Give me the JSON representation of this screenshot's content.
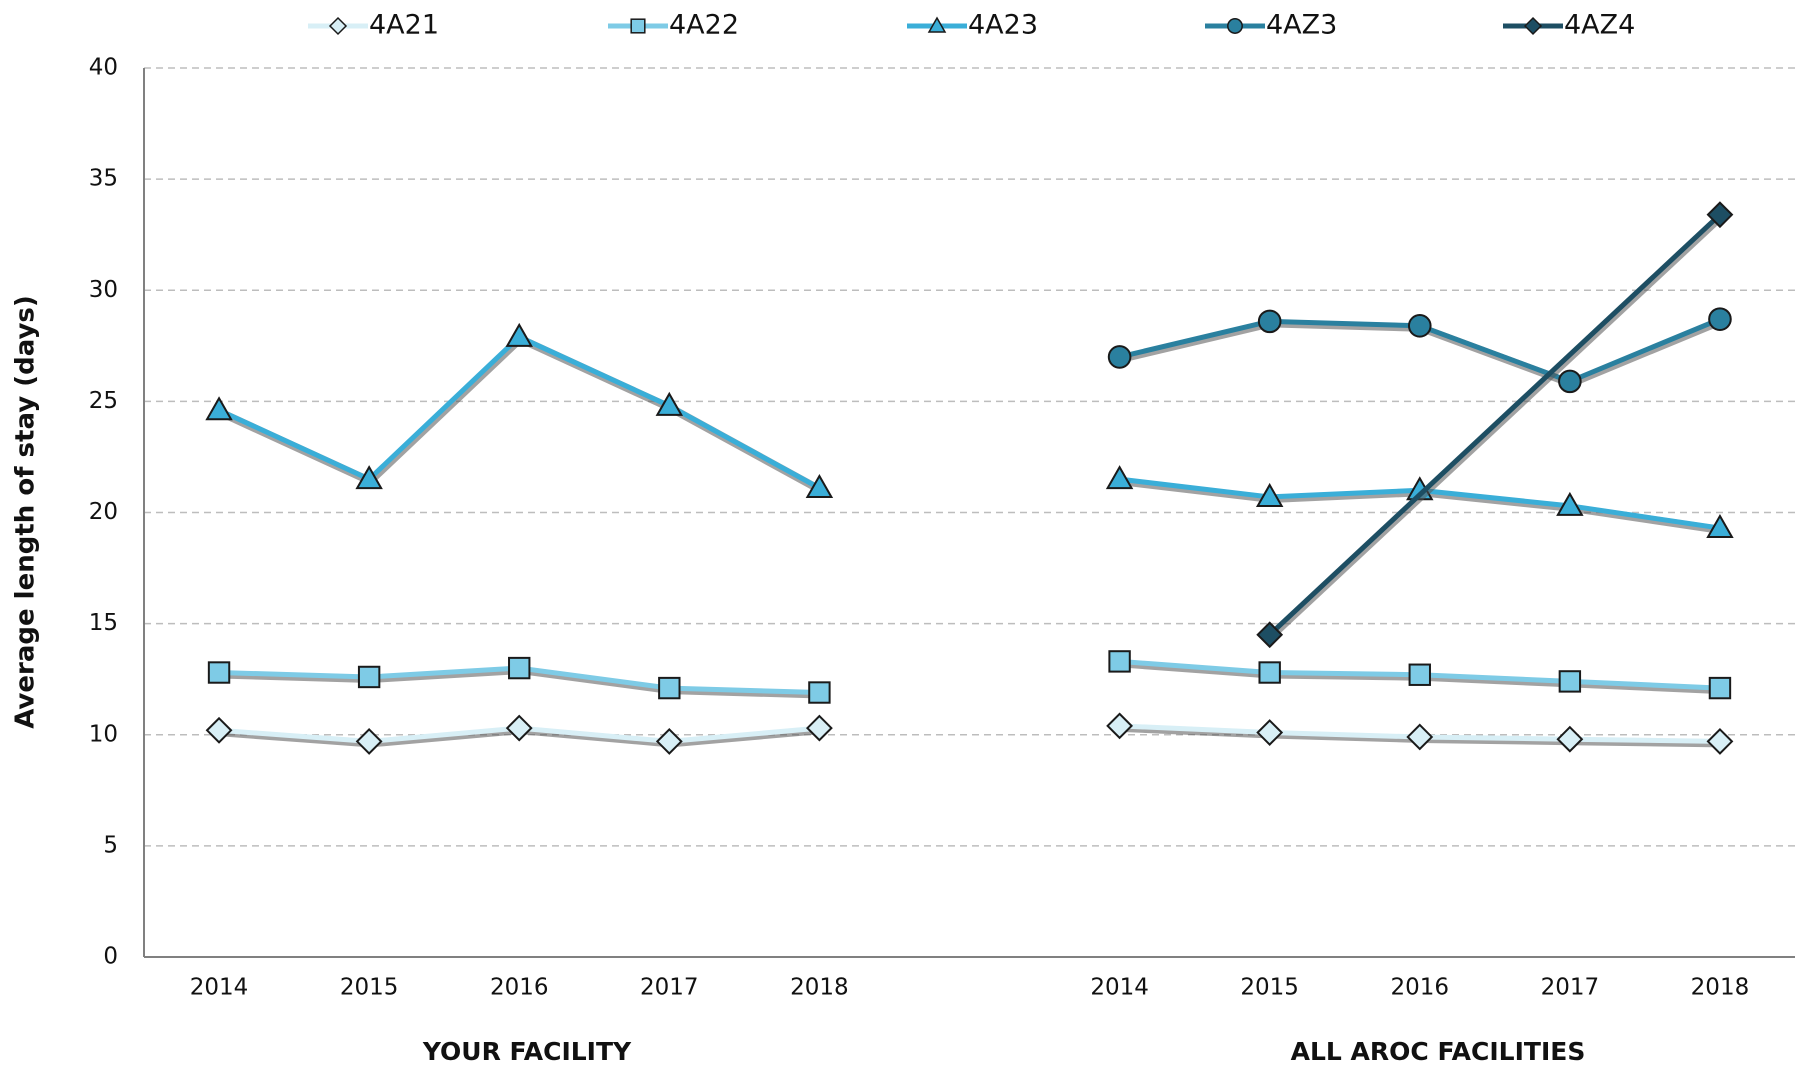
{
  "chart_data": {
    "type": "line",
    "y_label": "Average length of stay (days)",
    "annotations": [
      "YOUR FACILITY",
      "ALL AROC FACILITIES"
    ],
    "categories": [
      "2014",
      "2015",
      "2016",
      "2017",
      "2018",
      null,
      "2014",
      "2015",
      "2016",
      "2017",
      "2018"
    ],
    "series": [
      {
        "name": "4A21",
        "color": "#d8eff6",
        "marker": "diamond",
        "values": [
          10.2,
          9.7,
          10.3,
          9.7,
          10.3,
          null,
          10.4,
          10.1,
          9.9,
          9.8,
          9.7
        ]
      },
      {
        "name": "4A22",
        "color": "#7ecbe6",
        "marker": "square",
        "values": [
          12.8,
          12.6,
          13.0,
          12.1,
          11.9,
          null,
          13.3,
          12.8,
          12.7,
          12.4,
          12.1
        ]
      },
      {
        "name": "4A23",
        "color": "#3aaed8",
        "marker": "triangle",
        "values": [
          24.6,
          21.5,
          27.9,
          24.8,
          21.1,
          null,
          21.5,
          20.7,
          21.0,
          20.3,
          19.3
        ]
      },
      {
        "name": "4AZ3",
        "color": "#2a809f",
        "marker": "circle",
        "values": [
          null,
          null,
          null,
          null,
          null,
          null,
          27.0,
          28.6,
          28.4,
          25.9,
          28.7
        ]
      },
      {
        "name": "4AZ4",
        "color": "#1d4e63",
        "marker": "diamond",
        "connect_gaps": true,
        "values": [
          null,
          null,
          null,
          null,
          null,
          null,
          null,
          14.5,
          null,
          null,
          33.4
        ]
      }
    ],
    "ylim": [
      0,
      40
    ],
    "yticks": [
      0,
      5,
      10,
      15,
      20,
      25,
      30,
      35,
      40
    ],
    "grid": true,
    "legend": "top"
  }
}
